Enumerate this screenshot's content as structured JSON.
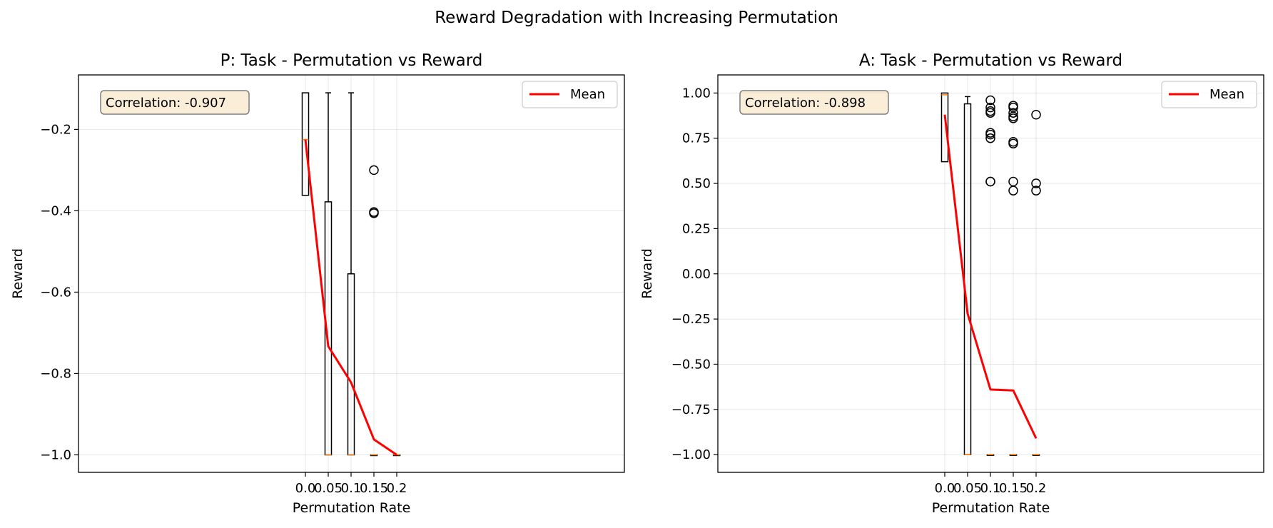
{
  "suptitle": "Reward Degradation with Increasing Permutation",
  "chart_data": [
    {
      "type": "box",
      "title": "P: Task - Permutation vs Reward",
      "xlabel": "Permutation Rate",
      "ylabel": "Reward",
      "x_tick_labels": [
        "0.0",
        "0.05",
        "0.1",
        "0.15",
        "0.2"
      ],
      "y_ticks": [
        -1.0,
        -0.8,
        -0.6,
        -0.4,
        -0.2
      ],
      "y_tick_labels": [
        "−1.0",
        "−0.8",
        "−0.6",
        "−0.4",
        "−0.2"
      ],
      "ylim": [
        -1.043,
        -0.066
      ],
      "annotation": "Correlation: -0.907",
      "legend": {
        "label": "Mean",
        "placement": "top-right"
      },
      "grid": true,
      "boxes": [
        {
          "x": 0.0,
          "q1": -0.362,
          "median": -0.225,
          "q3": -0.11,
          "whisker_low": -0.362,
          "whisker_high": -0.11,
          "fliers": []
        },
        {
          "x": 0.05,
          "q1": -1.0,
          "median": -1.0,
          "q3": -0.378,
          "whisker_low": -1.0,
          "whisker_high": -0.11,
          "fliers": []
        },
        {
          "x": 0.1,
          "q1": -1.0,
          "median": -1.0,
          "q3": -0.555,
          "whisker_low": -1.0,
          "whisker_high": -0.11,
          "fliers": []
        },
        {
          "x": 0.15,
          "q1": -1.0,
          "median": -1.0,
          "q3": -1.0,
          "whisker_low": -1.0,
          "whisker_high": -1.0,
          "fliers": [
            -0.3,
            -0.403,
            -0.406
          ]
        },
        {
          "x": 0.2,
          "q1": -1.0,
          "median": -1.0,
          "q3": -1.0,
          "whisker_low": -1.0,
          "whisker_high": -1.0,
          "fliers": []
        }
      ],
      "series": [
        {
          "name": "Mean",
          "x": [
            0.0,
            0.05,
            0.1,
            0.15,
            0.2
          ],
          "values": [
            -0.225,
            -0.733,
            -0.822,
            -0.962,
            -1.0
          ],
          "color": "#ff0000"
        }
      ]
    },
    {
      "type": "box",
      "title": "A: Task - Permutation vs Reward",
      "xlabel": "Permutation Rate",
      "ylabel": "Reward",
      "x_tick_labels": [
        "0.0",
        "0.05",
        "0.1",
        "0.15",
        "0.2"
      ],
      "y_ticks": [
        -1.0,
        -0.75,
        -0.5,
        -0.25,
        0.0,
        0.25,
        0.5,
        0.75,
        1.0
      ],
      "y_tick_labels": [
        "−1.00",
        "−0.75",
        "−0.50",
        "−0.25",
        "0.00",
        "0.25",
        "0.50",
        "0.75",
        "1.00"
      ],
      "ylim": [
        -1.098,
        1.1
      ],
      "annotation": "Correlation: -0.898",
      "legend": {
        "label": "Mean",
        "placement": "top-right"
      },
      "grid": true,
      "boxes": [
        {
          "x": 0.0,
          "q1": 0.62,
          "median": 0.99,
          "q3": 1.0,
          "whisker_low": 0.62,
          "whisker_high": 1.0,
          "fliers": []
        },
        {
          "x": 0.05,
          "q1": -1.0,
          "median": -1.0,
          "q3": 0.94,
          "whisker_low": -1.0,
          "whisker_high": 0.98,
          "fliers": []
        },
        {
          "x": 0.1,
          "q1": -1.0,
          "median": -1.0,
          "q3": -1.0,
          "whisker_low": -1.0,
          "whisker_high": -1.0,
          "fliers": [
            0.96,
            0.92,
            0.9,
            0.89,
            0.78,
            0.77,
            0.75,
            0.51,
            0.51
          ]
        },
        {
          "x": 0.15,
          "q1": -1.0,
          "median": -1.0,
          "q3": -1.0,
          "whisker_low": -1.0,
          "whisker_high": -1.0,
          "fliers": [
            0.93,
            0.92,
            0.89,
            0.87,
            0.86,
            0.73,
            0.72,
            0.51,
            0.46
          ]
        },
        {
          "x": 0.2,
          "q1": -1.0,
          "median": -1.0,
          "q3": -1.0,
          "whisker_low": -1.0,
          "whisker_high": -1.0,
          "fliers": [
            0.88,
            0.5,
            0.46
          ]
        }
      ],
      "series": [
        {
          "name": "Mean",
          "x": [
            0.0,
            0.05,
            0.1,
            0.15,
            0.2
          ],
          "values": [
            0.88,
            -0.22,
            -0.64,
            -0.645,
            -0.91
          ],
          "color": "#ff0000"
        }
      ]
    }
  ]
}
